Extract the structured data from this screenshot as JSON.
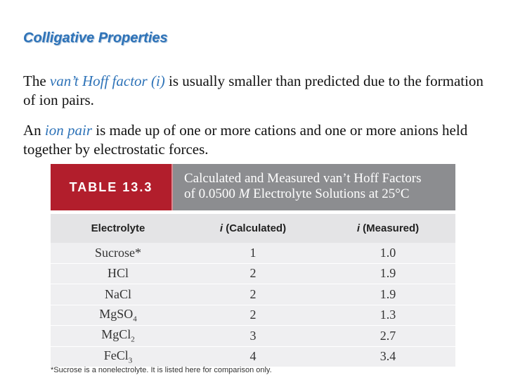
{
  "heading": "Colligative Properties",
  "para1": {
    "before": "The ",
    "term": "van’t Hoff factor (i)",
    "after": " is usually smaller than predicted due to the formation of ion pairs."
  },
  "para2": {
    "before": "An ",
    "term": "ion pair",
    "after": " is made up of one or more cations and one or more anions held together by electrostatic forces."
  },
  "table": {
    "tag": "TABLE 13.3",
    "title_line1": "Calculated and Measured van’t Hoff Factors",
    "title_pre": "of 0.0500 ",
    "title_m": "M",
    "title_post": " Electrolyte Solutions at 25°C",
    "columns": {
      "c1": "Electrolyte",
      "c2_i": "i",
      "c2_rest": " (Calculated)",
      "c3_i": "i",
      "c3_rest": " (Measured)"
    },
    "rows": [
      {
        "name": "Sucrose*",
        "sub": "",
        "calc": "1",
        "meas": "1.0"
      },
      {
        "name": "HCl",
        "sub": "",
        "calc": "2",
        "meas": "1.9"
      },
      {
        "name": "NaCl",
        "sub": "",
        "calc": "2",
        "meas": "1.9"
      },
      {
        "name": "MgSO",
        "sub": "4",
        "calc": "2",
        "meas": "1.3"
      },
      {
        "name": "MgCl",
        "sub": "2",
        "calc": "3",
        "meas": "2.7"
      },
      {
        "name": "FeCl",
        "sub": "3",
        "calc": "4",
        "meas": "3.4"
      }
    ],
    "footnote": "*Sucrose is a nonelectrolyte. It is listed here for comparison only."
  },
  "colors": {
    "heading": "#2e73b8",
    "tag_bg": "#b21e2c",
    "title_bg": "#8c8d90",
    "row_bg": "#efeff1"
  }
}
